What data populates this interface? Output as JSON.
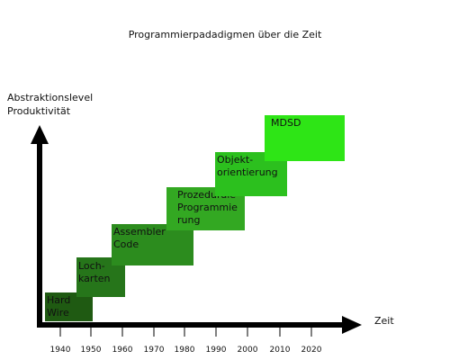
{
  "title": "Programmierpadadigmen über die Zeit",
  "y_axis": {
    "line1": "Abstraktionslevel",
    "line2": "Produktivität"
  },
  "x_axis": {
    "label": "Zeit",
    "ticks": [
      "1940",
      "1950",
      "1960",
      "1970",
      "1980",
      "1990",
      "2000",
      "2010",
      "2020"
    ]
  },
  "steps": [
    {
      "lines": [
        "Hard",
        "Wire"
      ],
      "color": "#1f5a12"
    },
    {
      "lines": [
        "Loch-",
        "karten"
      ],
      "color": "#26751a"
    },
    {
      "lines": [
        "Assembler",
        "Code"
      ],
      "color": "#2c8c1e"
    },
    {
      "lines": [
        "Prozedurale",
        "Programmie",
        "rung"
      ],
      "color": "#33a822"
    },
    {
      "lines": [
        "Objekt-",
        "orientierung"
      ],
      "color": "#2cc01e"
    },
    {
      "lines": [
        "MDSD"
      ],
      "color": "#2ee516"
    }
  ]
}
